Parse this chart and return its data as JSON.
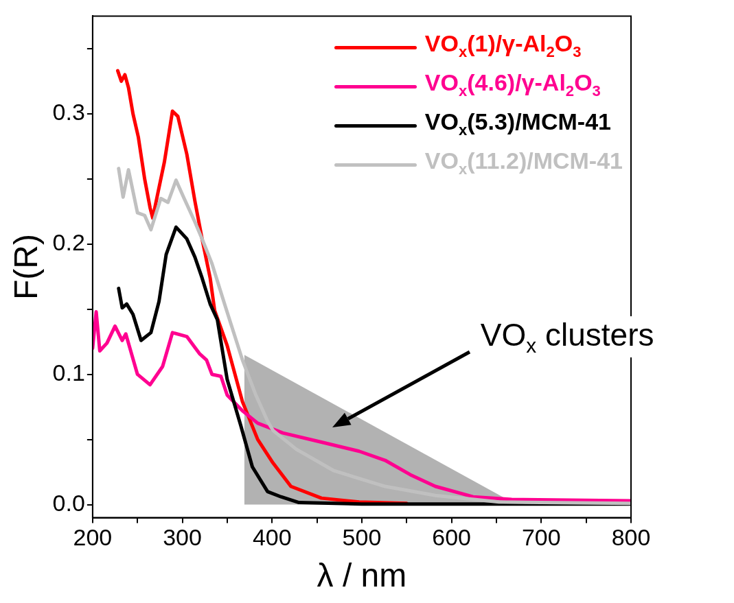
{
  "chart_data": {
    "type": "line",
    "xlabel": "λ / nm",
    "ylabel": "F(R)",
    "xlim": [
      200,
      800
    ],
    "ylim": [
      -0.01,
      0.375
    ],
    "xticks": [
      200,
      {
        "value": 250,
        "label": null
      },
      300,
      {
        "value": 350,
        "label": null
      },
      400,
      {
        "value": 450,
        "label": null
      },
      500,
      {
        "value": 550,
        "label": null
      },
      600,
      {
        "value": 650,
        "label": null
      },
      700,
      {
        "value": 750,
        "label": null
      },
      800
    ],
    "yticks": [
      {
        "value": 0,
        "label": "0.0"
      },
      {
        "value": 0.05,
        "label": null
      },
      0.1,
      {
        "value": 0.15,
        "label": null
      },
      0.2,
      {
        "value": 0.25,
        "label": null
      },
      0.3,
      {
        "value": 0.35,
        "label": null
      }
    ],
    "grid": false,
    "legend": "top right",
    "marker": "none",
    "line_style": "solid",
    "series": [
      {
        "type": "area",
        "color": "#b2b2b2",
        "x": [
          369,
          662
        ],
        "values": [
          0.115,
          0.004
        ]
      },
      {
        "name": "VO$_{x}$(1)/γ-Al$_{2}$O$_{3}$",
        "color": "#ff0000",
        "x": [
          228,
          232,
          236,
          240,
          245,
          251,
          258,
          264,
          267,
          273,
          280,
          289,
          295,
          305,
          314,
          322,
          331,
          336,
          350,
          367,
          384,
          401,
          421,
          455,
          497,
          550
        ],
        "values": [
          0.333,
          0.325,
          0.33,
          0.32,
          0.3,
          0.282,
          0.25,
          0.228,
          0.22,
          0.24,
          0.263,
          0.302,
          0.298,
          0.269,
          0.233,
          0.204,
          0.174,
          0.149,
          0.122,
          0.079,
          0.05,
          0.032,
          0.014,
          0.005,
          0.002,
          0.001
        ]
      },
      {
        "name": "VO$_{x}$(4.6)/γ-Al$_{2}$O$_{3}$",
        "color": "#ff0090",
        "x": [
          200,
          204,
          208,
          216,
          225,
          233,
          237,
          250,
          264,
          278,
          289,
          305,
          319,
          327,
          333,
          343,
          350,
          367,
          384,
          412,
          455,
          497,
          526,
          554,
          582,
          624,
          667,
          800
        ],
        "values": [
          0.12,
          0.148,
          0.118,
          0.124,
          0.137,
          0.126,
          0.131,
          0.1,
          0.092,
          0.106,
          0.132,
          0.129,
          0.116,
          0.111,
          0.1,
          0.0985,
          0.084,
          0.072,
          0.0625,
          0.055,
          0.048,
          0.041,
          0.034,
          0.023,
          0.014,
          0.006,
          0.004,
          0.003
        ]
      },
      {
        "name": "VO$_{x}$(5.3)/MCM-41",
        "color": "#000000",
        "x": [
          229,
          233,
          238,
          245,
          254,
          265,
          274,
          282,
          293,
          305,
          314,
          322,
          331,
          339,
          350,
          365,
          378,
          395,
          410,
          430,
          500,
          800
        ],
        "values": [
          0.166,
          0.151,
          0.154,
          0.146,
          0.126,
          0.132,
          0.156,
          0.192,
          0.213,
          0.204,
          0.19,
          0.174,
          0.154,
          0.142,
          0.096,
          0.061,
          0.029,
          0.01,
          0.006,
          0.0016,
          0.0005,
          0.0005
        ]
      },
      {
        "name": "VO$_{x}$(11.2)/MCM-41",
        "color": "#c0c0c0",
        "x": [
          229,
          234,
          240,
          250,
          258,
          265,
          276,
          284,
          293,
          302,
          314,
          322,
          333,
          348,
          367,
          382,
          395,
          401,
          427,
          469,
          526,
          582,
          653,
          800
        ],
        "values": [
          0.258,
          0.236,
          0.257,
          0.224,
          0.222,
          0.211,
          0.235,
          0.232,
          0.249,
          0.235,
          0.217,
          0.204,
          0.185,
          0.152,
          0.111,
          0.084,
          0.064,
          0.057,
          0.0425,
          0.026,
          0.014,
          0.007,
          0.002,
          0.001
        ]
      }
    ],
    "annotations": [
      "VO$_{x}$ clusters"
    ]
  }
}
